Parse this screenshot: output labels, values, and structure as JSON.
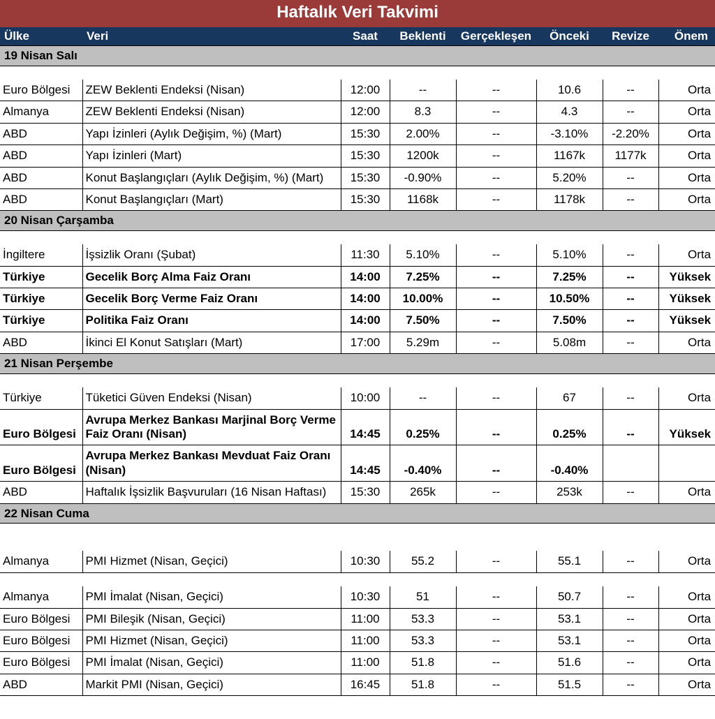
{
  "title": "Haftalık Veri Takvimi",
  "columns": {
    "ulke": "Ülke",
    "veri": "Veri",
    "saat": "Saat",
    "beklenti": "Beklenti",
    "gerceklesen": "Gerçekleşen",
    "onceki": "Önceki",
    "revize": "Revize",
    "onem": "Önem"
  },
  "colors": {
    "title_bg": "#9a3b3a",
    "header_bg": "#17375e",
    "date_bg": "#bfbfbf",
    "text": "#000000",
    "header_text": "#ffffff",
    "border": "#000000",
    "background": "#ffffff"
  },
  "sections": [
    {
      "date": "19 Nisan Salı",
      "rows": [
        {
          "ulke": "Euro Bölgesi",
          "veri": "ZEW Beklenti Endeksi (Nisan)",
          "saat": "12:00",
          "beklenti": "--",
          "gerceklesen": "--",
          "onceki": "10.6",
          "revize": "--",
          "onem": "Orta",
          "bold": false
        },
        {
          "ulke": "Almanya",
          "veri": "ZEW Beklenti Endeksi (Nisan)",
          "saat": "12:00",
          "beklenti": "8.3",
          "gerceklesen": "--",
          "onceki": "4.3",
          "revize": "--",
          "onem": "Orta",
          "bold": false
        },
        {
          "ulke": "ABD",
          "veri": "Yapı İzinleri (Aylık Değişim, %) (Mart)",
          "saat": "15:30",
          "beklenti": "2.00%",
          "gerceklesen": "--",
          "onceki": "-3.10%",
          "revize": "-2.20%",
          "onem": "Orta",
          "bold": false
        },
        {
          "ulke": "ABD",
          "veri": "Yapı İzinleri (Mart)",
          "saat": "15:30",
          "beklenti": "1200k",
          "gerceklesen": "--",
          "onceki": "1167k",
          "revize": "1177k",
          "onem": "Orta",
          "bold": false
        },
        {
          "ulke": "ABD",
          "veri": "Konut Başlangıçları (Aylık Değişim, %) (Mart)",
          "saat": "15:30",
          "beklenti": "-0.90%",
          "gerceklesen": "--",
          "onceki": "5.20%",
          "revize": "--",
          "onem": "Orta",
          "bold": false
        },
        {
          "ulke": "ABD",
          "veri": "Konut Başlangıçları (Mart)",
          "saat": "15:30",
          "beklenti": "1168k",
          "gerceklesen": "--",
          "onceki": "1178k",
          "revize": "--",
          "onem": "Orta",
          "bold": false
        }
      ]
    },
    {
      "date": "20 Nisan Çarşamba",
      "rows": [
        {
          "ulke": "İngiltere",
          "veri": "İşsizlik Oranı (Şubat)",
          "saat": "11:30",
          "beklenti": "5.10%",
          "gerceklesen": "--",
          "onceki": "5.10%",
          "revize": "--",
          "onem": "Orta",
          "bold": false
        },
        {
          "ulke": "Türkiye",
          "veri": "Gecelik Borç Alma Faiz Oranı",
          "saat": "14:00",
          "beklenti": "7.25%",
          "gerceklesen": "--",
          "onceki": "7.25%",
          "revize": "--",
          "onem": "Yüksek",
          "bold": true
        },
        {
          "ulke": "Türkiye",
          "veri": "Gecelik Borç Verme Faiz Oranı",
          "saat": "14:00",
          "beklenti": "10.00%",
          "gerceklesen": "--",
          "onceki": "10.50%",
          "revize": "--",
          "onem": "Yüksek",
          "bold": true
        },
        {
          "ulke": "Türkiye",
          "veri": "Politika Faiz Oranı",
          "saat": "14:00",
          "beklenti": "7.50%",
          "gerceklesen": "--",
          "onceki": "7.50%",
          "revize": "--",
          "onem": "Yüksek",
          "bold": true
        },
        {
          "ulke": "ABD",
          "veri": "İkinci El Konut Satışları  (Mart)",
          "saat": "17:00",
          "beklenti": "5.29m",
          "gerceklesen": "--",
          "onceki": "5.08m",
          "revize": "--",
          "onem": "Orta",
          "bold": false
        }
      ]
    },
    {
      "date": "21 Nisan Perşembe",
      "rows": [
        {
          "ulke": "Türkiye",
          "veri": "Tüketici Güven Endeksi (Nisan)",
          "saat": "10:00",
          "beklenti": "--",
          "gerceklesen": "--",
          "onceki": "67",
          "revize": "--",
          "onem": "Orta",
          "bold": false
        },
        {
          "ulke": "Euro Bölgesi",
          "veri": "Avrupa Merkez Bankası Marjinal Borç Verme Faiz Oranı (Nisan)",
          "saat": "14:45",
          "beklenti": "0.25%",
          "gerceklesen": "--",
          "onceki": "0.25%",
          "revize": "--",
          "onem": "Yüksek",
          "bold": true
        },
        {
          "ulke": "Euro Bölgesi",
          "veri": "Avrupa Merkez Bankası Mevduat Faiz Oranı (Nisan)",
          "saat": "14:45",
          "beklenti": "-0.40%",
          "gerceklesen": "--",
          "onceki": "-0.40%",
          "revize": "",
          "onem": "",
          "bold": true
        },
        {
          "ulke": "ABD",
          "veri": "Haftalık İşsizlik Başvuruları (16 Nisan Haftası)",
          "saat": "15:30",
          "beklenti": "265k",
          "gerceklesen": "--",
          "onceki": "253k",
          "revize": "--",
          "onem": "Orta",
          "bold": false
        }
      ]
    },
    {
      "date": "22 Nisan Cuma",
      "extra_spacer": true,
      "rows": [
        {
          "ulke": "Almanya",
          "veri": "PMI Hizmet  (Nisan, Geçici)",
          "saat": "10:30",
          "beklenti": "55.2",
          "gerceklesen": "--",
          "onceki": "55.1",
          "revize": "--",
          "onem": "Orta",
          "bold": false,
          "spacer_after": true
        },
        {
          "ulke": "Almanya",
          "veri": "PMI İmalat  (Nisan, Geçici)",
          "saat": "10:30",
          "beklenti": "51",
          "gerceklesen": "--",
          "onceki": "50.7",
          "revize": "--",
          "onem": "Orta",
          "bold": false
        },
        {
          "ulke": "Euro Bölgesi",
          "veri": "PMI Bileşik (Nisan, Geçici)",
          "saat": "11:00",
          "beklenti": "53.3",
          "gerceklesen": "--",
          "onceki": "53.1",
          "revize": "--",
          "onem": "Orta",
          "bold": false
        },
        {
          "ulke": "Euro Bölgesi",
          "veri": "PMI Hizmet  (Nisan, Geçici)",
          "saat": "11:00",
          "beklenti": "53.3",
          "gerceklesen": "--",
          "onceki": "53.1",
          "revize": "--",
          "onem": "Orta",
          "bold": false
        },
        {
          "ulke": "Euro Bölgesi",
          "veri": "PMI İmalat  (Nisan, Geçici)",
          "saat": "11:00",
          "beklenti": "51.8",
          "gerceklesen": "--",
          "onceki": "51.6",
          "revize": "--",
          "onem": "Orta",
          "bold": false
        },
        {
          "ulke": "ABD",
          "veri": "Markit PMI (Nisan, Geçici)",
          "saat": "16:45",
          "beklenti": "51.8",
          "gerceklesen": "--",
          "onceki": "51.5",
          "revize": "--",
          "onem": "Orta",
          "bold": false
        }
      ]
    }
  ]
}
